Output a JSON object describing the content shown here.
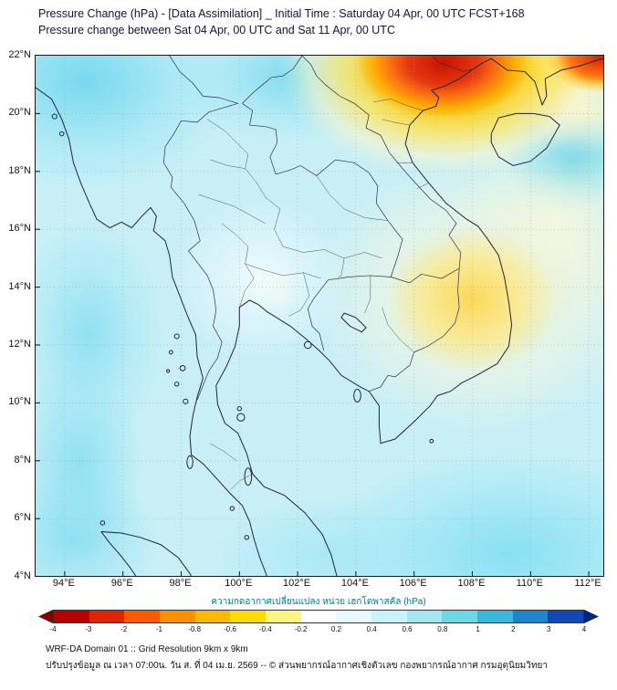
{
  "header": {
    "title_line1": "Pressure Change (hPa) - [Data Assimilation] _ Initial Time : Saturday 04 Apr, 00 UTC FCST+168",
    "title_line2": "Pressure change between Sat 04 Apr, 00 UTC and Sat 11 Apr, 00 UTC"
  },
  "map": {
    "x_ticks": [
      "94°E",
      "96°E",
      "98°E",
      "100°E",
      "102°E",
      "104°E",
      "106°E",
      "108°E",
      "110°E",
      "112°E"
    ],
    "y_ticks": [
      "22°N",
      "20°N",
      "18°N",
      "16°N",
      "14°N",
      "12°N",
      "10°N",
      "8°N",
      "6°N",
      "4°N"
    ],
    "lon_range": [
      93.0,
      112.5
    ],
    "lat_range": [
      4,
      22
    ],
    "field_notes": [
      "Strong pressure fall (red/orange, about -2 to -4 hPa) centered over northern Vietnam near 105-109E, 20-22N",
      "Second smaller pressure-fall patch (red/orange) at the top-right corner near 112E, 21.5-22N",
      "Weak pressure fall (pale yellow, about -0.2 to -1 hPa) over southern Laos, Cambodia and southern Vietnam near 104-110E, 11-17N",
      "Weak pressure rise (light cyan, about +0.2 to +1 hPa) over most of Thailand, Myanmar, the Andaman Sea and the Gulf of Thailand"
    ]
  },
  "colorbar": {
    "label": "ความกดอากาศเปลี่ยนแปลง หน่วย เฮกโตพาสคัล (hPa)",
    "ticks": [
      "-4",
      "-3",
      "-2",
      "-1",
      "-0.8",
      "-0.6",
      "-0.4",
      "-0.2",
      "0.2",
      "0.4",
      "0.6",
      "0.8",
      "1",
      "2",
      "3",
      "4"
    ],
    "cells": [
      "#b80000",
      "#e32400",
      "#ff5a00",
      "#ff9000",
      "#ffb800",
      "#ffdb00",
      "#fff480",
      "#ffffff",
      "#e6faff",
      "#c8f3fa",
      "#a0e8f2",
      "#6ed7e8",
      "#38b8dd",
      "#1e86cc",
      "#1048b8"
    ],
    "arrow_left_color": "#7f0000",
    "arrow_right_color": "#00217f"
  },
  "footer": {
    "line1": "WRF-DA Domain 01 :: Grid Resolution 9km x 9km",
    "line2": "ปรับปรุงข้อมูล ณ เวลา 07:00น. วัน ส. ที่ 04 เม.ย. 2569 -- © ส่วนพยากรณ์อากาศเชิงตัวเลข กองพยากรณ์อากาศ กรมอุตุนิยมวิทยา"
  },
  "colors": {
    "title_text": "#14143c",
    "colorbar_label_text": "#007a8c",
    "map_background": "#c8eff6",
    "pressure_fall_max": "#c81200",
    "pressure_rise_light": "#a0e8f2"
  }
}
